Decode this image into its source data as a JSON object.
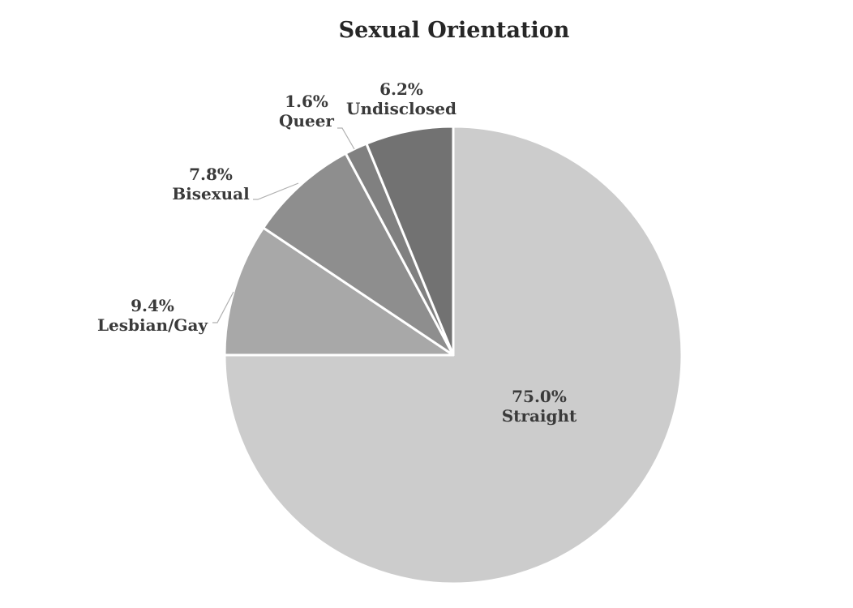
{
  "chart_data": {
    "type": "pie",
    "title": "Sexual Orientation",
    "slices": [
      {
        "label": "Straight",
        "value": 75.0,
        "value_text": "75.0%",
        "color": "#cccccc"
      },
      {
        "label": "Lesbian/Gay",
        "value": 9.4,
        "value_text": "9.4%",
        "color": "#a8a8a8"
      },
      {
        "label": "Bisexual",
        "value": 7.8,
        "value_text": "7.8%",
        "color": "#8e8e8e"
      },
      {
        "label": "Queer",
        "value": 1.6,
        "value_text": "1.6%",
        "color": "#808080"
      },
      {
        "label": "Undisclosed",
        "value": 6.2,
        "value_text": "6.2%",
        "color": "#727272"
      }
    ],
    "start_angle_deg": 0,
    "direction": "clockwise",
    "legend": "none",
    "slice_border_color": "#ffffff",
    "label_color": "#3a3a3a",
    "leader_color": "#b0b0b0"
  }
}
